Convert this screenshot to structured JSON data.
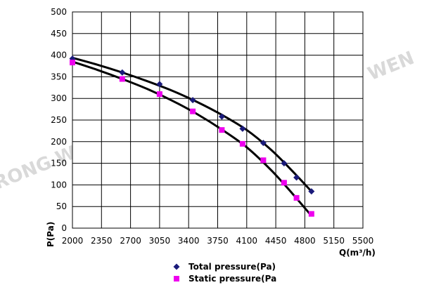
{
  "chart_data": {
    "type": "scatter",
    "title": "",
    "xlabel": "Q(m³/h)",
    "ylabel": "P(Pa)",
    "xlim": [
      2000,
      5500
    ],
    "ylim": [
      0,
      500
    ],
    "xticks": [
      "2000",
      "2350",
      "2700",
      "3050",
      "3400",
      "3750",
      "4100",
      "4450",
      "4800",
      "5150",
      "5500"
    ],
    "yticks": [
      "0",
      "50",
      "100",
      "150",
      "200",
      "250",
      "300",
      "350",
      "400",
      "450",
      "500"
    ],
    "grid": true,
    "legend_position": "bottom",
    "watermark": "RONG WEN",
    "series": [
      {
        "name": "Total pressure(Pa)",
        "marker": "diamond",
        "color": "#1a1a7a",
        "x": [
          2000,
          2600,
          3050,
          3450,
          3800,
          4050,
          4300,
          4550,
          4700,
          4880
        ],
        "y": [
          392,
          360,
          333,
          296,
          258,
          230,
          197,
          150,
          117,
          85
        ],
        "fit_x": [
          2000,
          2300,
          2600,
          2900,
          3200,
          3500,
          3800,
          4100,
          4400,
          4650,
          4880
        ],
        "fit_y": [
          394,
          378,
          360,
          340,
          318,
          292,
          262,
          227,
          180,
          132,
          85
        ]
      },
      {
        "name": "Static pressure(Pa",
        "marker": "square",
        "color": "#ee00ee",
        "x": [
          2000,
          2600,
          3050,
          3450,
          3800,
          4050,
          4300,
          4550,
          4700,
          4880
        ],
        "y": [
          383,
          345,
          310,
          270,
          227,
          195,
          157,
          105,
          70,
          33
        ],
        "fit_x": [
          2000,
          2300,
          2600,
          2900,
          3200,
          3500,
          3800,
          4100,
          4400,
          4650,
          4860
        ],
        "fit_y": [
          385,
          366,
          345,
          322,
          295,
          264,
          228,
          187,
          133,
          80,
          33
        ]
      }
    ]
  }
}
